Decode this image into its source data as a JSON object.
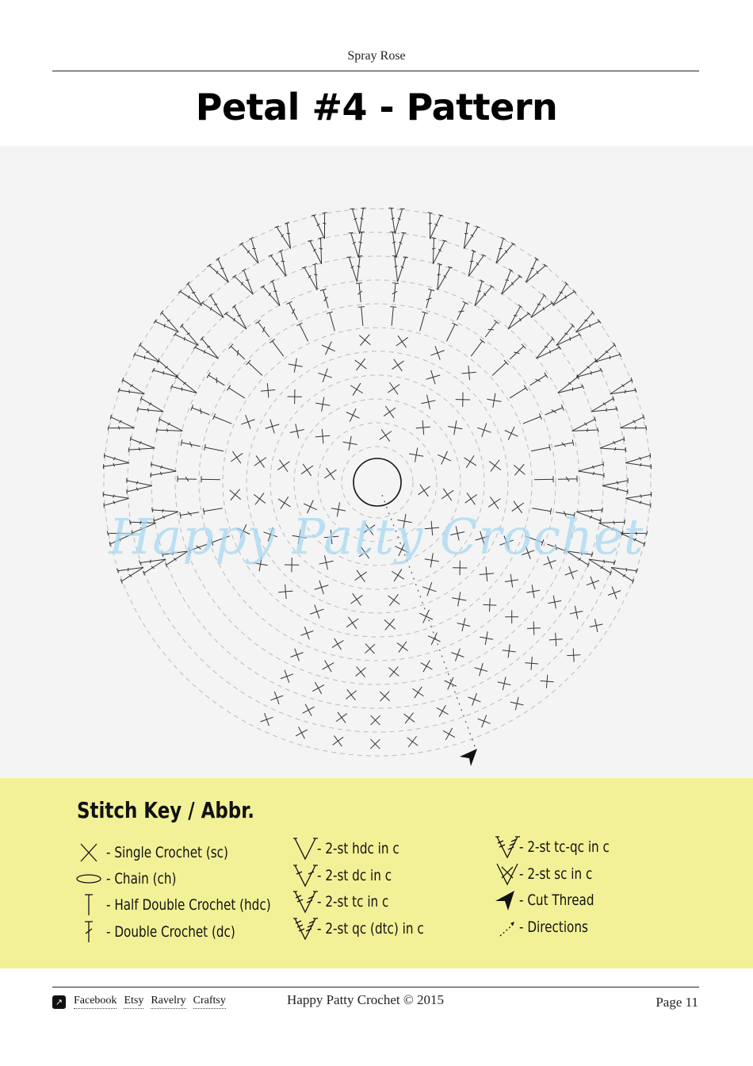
{
  "header": {
    "title": "Spray Rose"
  },
  "page_title": "Petal #4  - Pattern",
  "watermark": "Happy Patty Crochet",
  "stitch_key": {
    "title": "Stitch Key / Abbr.",
    "items": [
      {
        "icon": "single-crochet-icon",
        "label": "- Single Crochet (sc)"
      },
      {
        "icon": "chain-icon",
        "label": "- Chain (ch)"
      },
      {
        "icon": "half-double-crochet-icon",
        "label": "- Half Double Crochet (hdc)"
      },
      {
        "icon": "double-crochet-icon",
        "label": "- Double Crochet (dc)"
      },
      {
        "icon": "2st-hdc-icon",
        "label": "- 2-st hdc in  c"
      },
      {
        "icon": "2st-dc-icon",
        "label": "- 2-st dc in c"
      },
      {
        "icon": "2st-tc-icon",
        "label": "- 2-st tc in c"
      },
      {
        "icon": "2st-qc-icon",
        "label": "- 2-st qc (dtc) in  c"
      },
      {
        "icon": "2st-tc-qc-icon",
        "label": "- 2-st tc-qc in  c"
      },
      {
        "icon": "2st-sc-icon",
        "label": "- 2-st sc in c"
      },
      {
        "icon": "cut-thread-icon",
        "label": "- Cut Thread"
      },
      {
        "icon": "directions-icon",
        "label": "- Directions"
      }
    ]
  },
  "footer": {
    "links": [
      "Facebook",
      "Etsy",
      "Ravelry",
      "Craftsy"
    ],
    "copyright": "Happy Patty Crochet © 2015",
    "page_label": "Page 11"
  },
  "colors": {
    "key_background": "#f3f197",
    "diagram_background": "#f4f4f4",
    "watermark": "#a9d8f2"
  }
}
